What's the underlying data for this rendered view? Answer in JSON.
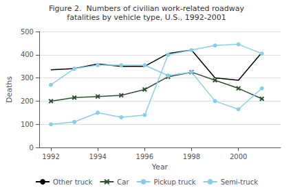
{
  "chart_data": {
    "type": "line",
    "title": "Figure 2.  Numbers of civilian work-related roadway",
    "subtitle": "fatalities by vehicle type, U.S., 1992-2001",
    "x_label": "Year",
    "y_label": "Deaths",
    "x": [
      1992,
      1993,
      1994,
      1995,
      1996,
      1997,
      1998,
      1999,
      2000,
      2001
    ],
    "series": [
      {
        "name": "Other truck",
        "color": "#000000",
        "marker": "none",
        "values": [
          335,
          340,
          360,
          350,
          350,
          405,
          420,
          300,
          290,
          410
        ]
      },
      {
        "name": "Car",
        "color": "#2f4f2f",
        "marker": "x",
        "values": [
          200,
          215,
          220,
          225,
          250,
          305,
          325,
          290,
          255,
          210
        ]
      },
      {
        "name": "Pickup truck",
        "color": "#87ceeb",
        "marker": "circle",
        "values": [
          270,
          340,
          355,
          355,
          355,
          310,
          325,
          200,
          165,
          255
        ]
      },
      {
        "name": "Semi-truck",
        "color": "#87ceeb",
        "marker": "circle",
        "values": [
          100,
          110,
          150,
          130,
          140,
          400,
          420,
          440,
          445,
          405
        ]
      }
    ],
    "xlim": [
      1991.5,
      2001.8
    ],
    "xticks": [
      1992,
      1994,
      1996,
      1998,
      2000
    ],
    "ylim": [
      0,
      500
    ],
    "yticks": [
      0,
      100,
      200,
      300,
      400,
      500
    ],
    "grid": true,
    "legend": "bottom"
  }
}
